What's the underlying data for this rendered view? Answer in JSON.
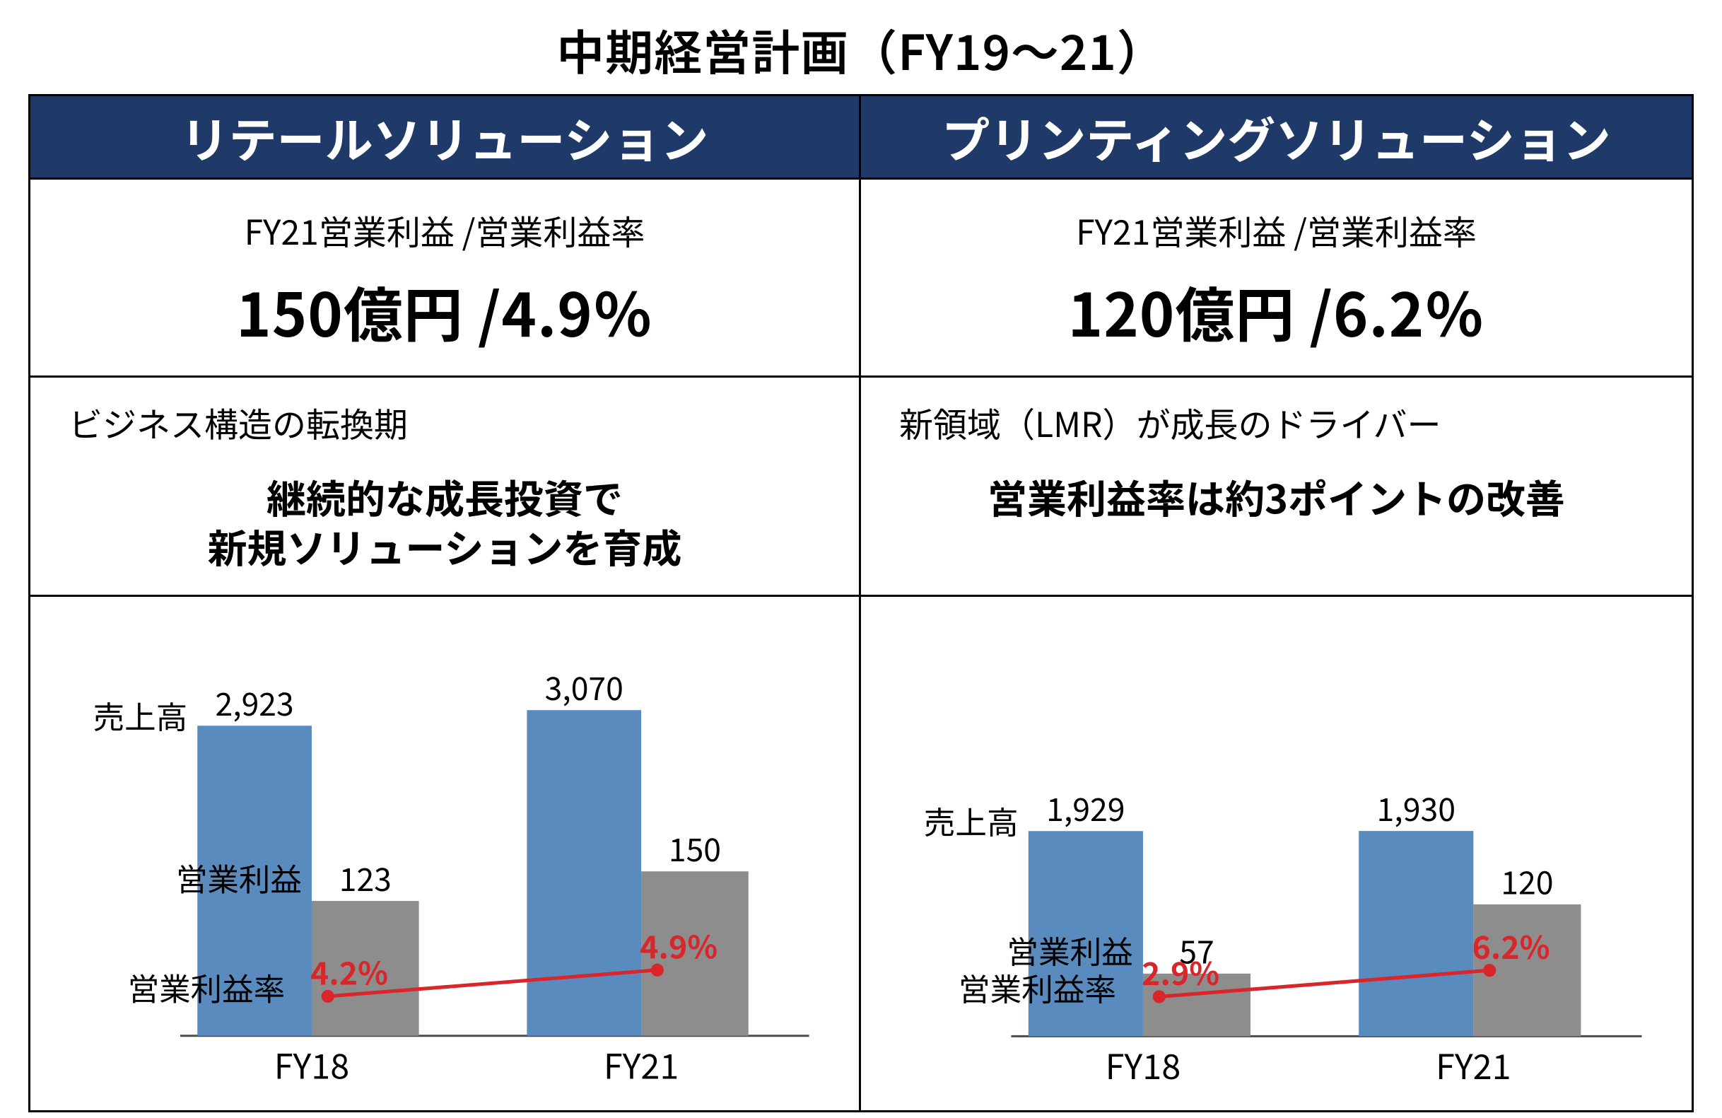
{
  "title": "中期経営計画（FY19～21）",
  "columns": [
    {
      "header": "リテールソリューション",
      "kpi_sub": "FY21営業利益 /営業利益率",
      "kpi_main": "150億円 /4.9％",
      "desc_top": "ビジネス構造の転換期",
      "desc_main": "継続的な成長投資で\n新規ソリューションを育成",
      "chart": {
        "sales_label": "売上高",
        "profit_label": "営業利益",
        "margin_label": "営業利益率",
        "x_labels": [
          "FY18",
          "FY21"
        ],
        "sales": [
          2923,
          3070
        ],
        "profit": [
          123,
          150
        ],
        "margin": [
          "4.2%",
          "4.9%"
        ],
        "sales_max": 3100,
        "profit_max": 300,
        "bar_color_sales": "#5a8bbf",
        "bar_color_profit": "#8d8d8d",
        "line_color": "#d9262a",
        "axis_color": "#4a4a4a",
        "sales_label_text": [
          "2,923",
          "3,070"
        ],
        "profit_label_text": [
          "123",
          "150"
        ],
        "sales_fontsize": 44,
        "profit_fontsize": 44,
        "margin_fontsize": 44,
        "label_fontsize": 44,
        "x_fontsize": 48,
        "chart_top_pad": 130
      }
    },
    {
      "header": "プリンティングソリューション",
      "kpi_sub": "FY21営業利益 /営業利益率",
      "kpi_main": "120億円 /6.2％",
      "desc_top": "新領域（LMR）が成長のドライバー",
      "desc_main": "営業利益率は約3ポイントの改善",
      "chart": {
        "sales_label": "売上高",
        "profit_label": "営業利益",
        "margin_label": "営業利益率",
        "x_labels": [
          "FY18",
          "FY21"
        ],
        "sales": [
          1929,
          1930
        ],
        "profit": [
          57,
          120
        ],
        "margin": [
          "2.9%",
          "6.2%"
        ],
        "sales_max": 3100,
        "profit_max": 300,
        "bar_color_sales": "#5a8bbf",
        "bar_color_profit": "#8d8d8d",
        "line_color": "#d9262a",
        "axis_color": "#4a4a4a",
        "sales_label_text": [
          "1,929",
          "1,930"
        ],
        "profit_label_text": [
          "57",
          "120"
        ],
        "sales_fontsize": 44,
        "profit_fontsize": 44,
        "margin_fontsize": 44,
        "label_fontsize": 44,
        "x_fontsize": 48,
        "chart_top_pad": 130
      }
    }
  ]
}
